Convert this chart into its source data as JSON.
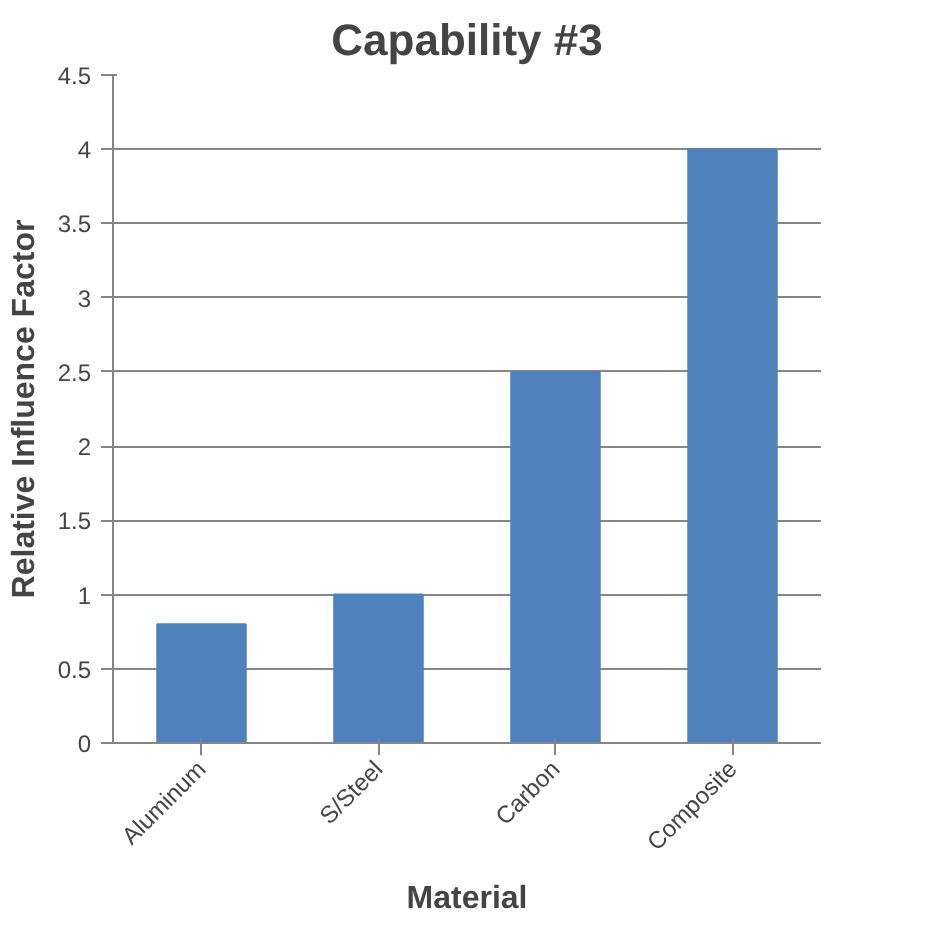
{
  "chart_data": {
    "type": "bar",
    "title": "Capability #3",
    "xlabel": "Material",
    "ylabel": "Relative Influence Factor",
    "categories": [
      "Aluminum",
      "S/Steel",
      "Carbon",
      "Composite"
    ],
    "values": [
      0.8,
      1,
      2.5,
      4
    ],
    "color": "#4f81bd",
    "ylim": [
      0,
      4.5
    ],
    "yticks": [
      0,
      0.5,
      1,
      1.5,
      2,
      2.5,
      3,
      3.5,
      4,
      4.5
    ],
    "grid": "y"
  }
}
